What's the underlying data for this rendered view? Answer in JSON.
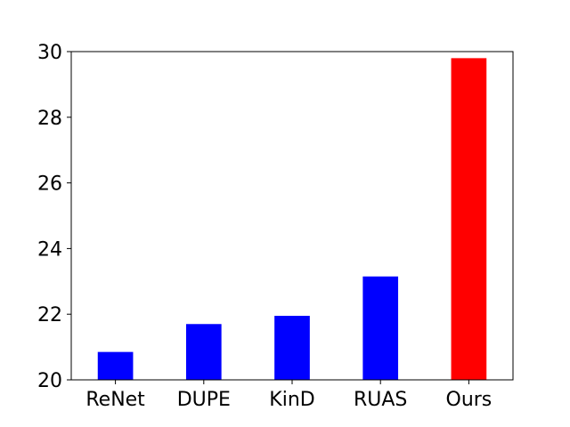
{
  "chart_data": {
    "type": "bar",
    "title": "",
    "xlabel": "",
    "ylabel": "",
    "categories": [
      "ReNet",
      "DUPE",
      "KinD",
      "RUAS",
      "Ours"
    ],
    "values": [
      20.85,
      21.7,
      21.95,
      23.15,
      29.8
    ],
    "colors": [
      "#0000ff",
      "#0000ff",
      "#0000ff",
      "#0000ff",
      "#ff0000"
    ],
    "ylim": [
      20,
      30
    ],
    "yticks": [
      20,
      22,
      24,
      26,
      28,
      30
    ],
    "grid": false,
    "legend": "none"
  }
}
